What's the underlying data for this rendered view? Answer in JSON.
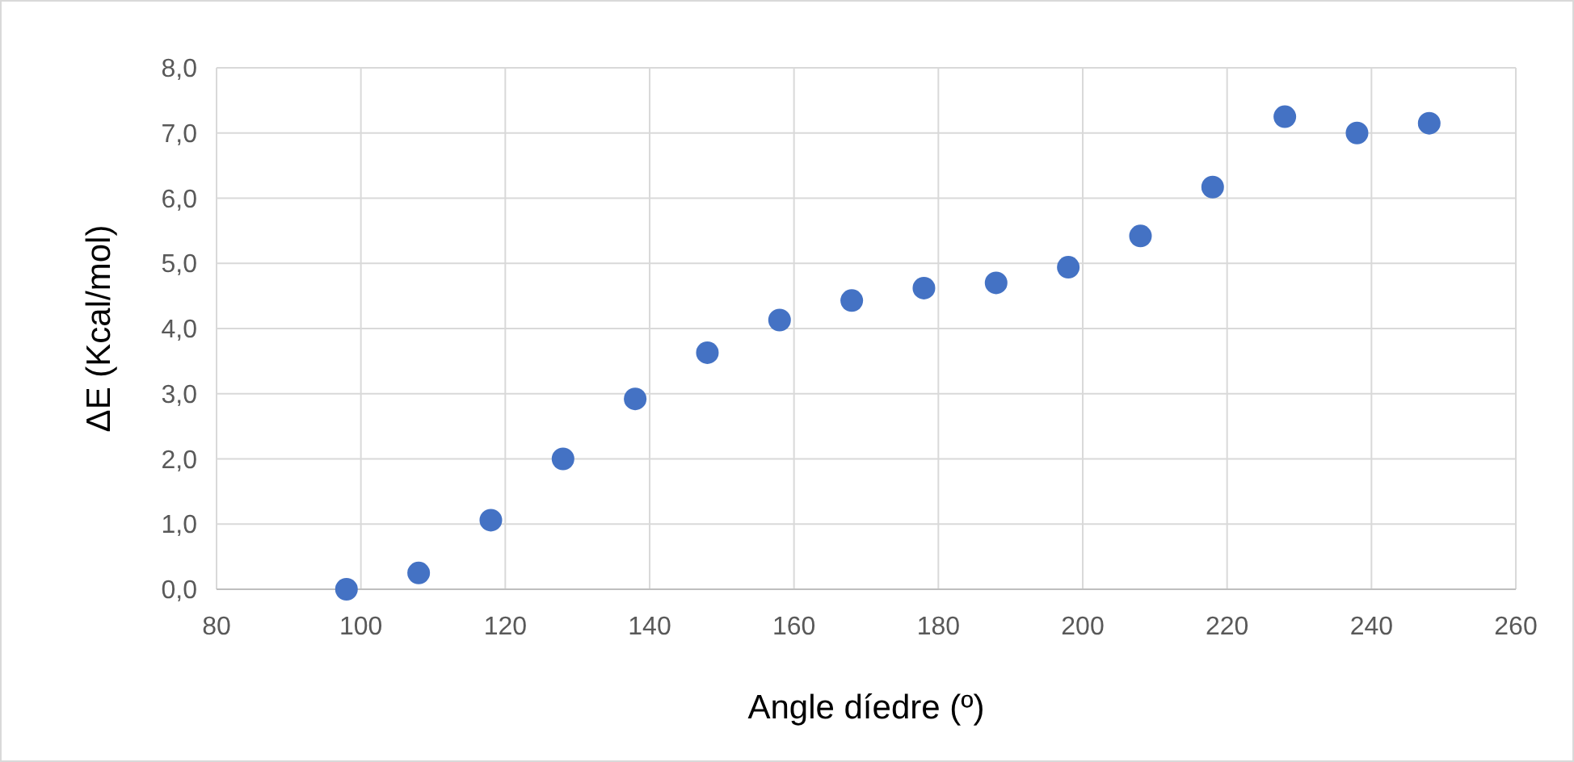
{
  "chart_data": {
    "type": "scatter",
    "xlabel": "Angle díedre (º)",
    "ylabel": "ΔE (Kcal/mol)",
    "x": [
      98,
      108,
      118,
      128,
      138,
      148,
      158,
      168,
      178,
      188,
      198,
      208,
      218,
      228,
      238,
      248
    ],
    "series": [
      {
        "color": "#4472c4",
        "values": [
          0.0,
          0.25,
          1.06,
          2.0,
          2.92,
          3.63,
          4.13,
          4.43,
          4.62,
          4.7,
          4.94,
          5.42,
          6.17,
          7.25,
          7.0,
          7.15
        ]
      }
    ],
    "xlim": [
      80,
      260
    ],
    "xticks": [
      80,
      100,
      120,
      140,
      160,
      180,
      200,
      220,
      240,
      260
    ],
    "ylim": [
      0,
      8
    ],
    "yticks": [
      {
        "value": 0,
        "label": "0,0"
      },
      {
        "value": 1,
        "label": "1,0"
      },
      {
        "value": 2,
        "label": "2,0"
      },
      {
        "value": 3,
        "label": "3,0"
      },
      {
        "value": 4,
        "label": "4,0"
      },
      {
        "value": 5,
        "label": "5,0"
      },
      {
        "value": 6,
        "label": "6,0"
      },
      {
        "value": 7,
        "label": "7,0"
      },
      {
        "value": 8,
        "label": "8,0"
      }
    ],
    "grid": true,
    "marker": "circle"
  }
}
